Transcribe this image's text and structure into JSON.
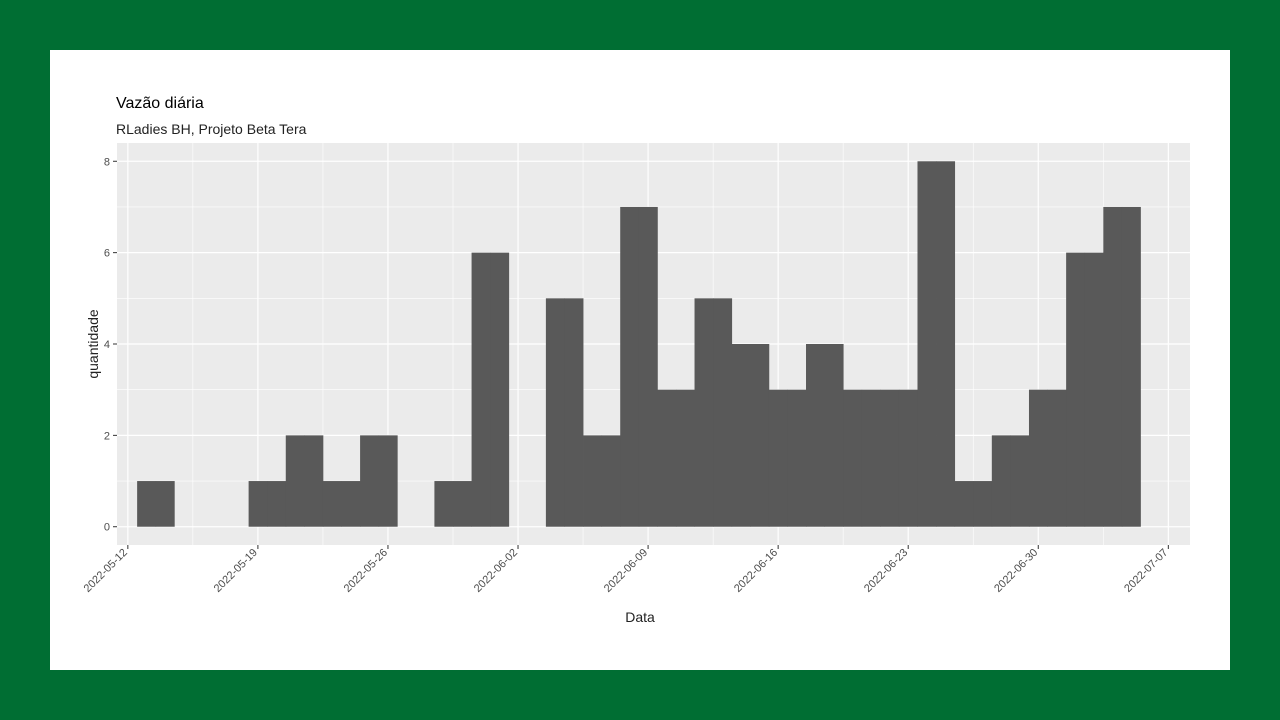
{
  "chart_data": {
    "type": "bar",
    "title": "Vazão diária",
    "subtitle": "RLadies BH, Projeto Beta Tera",
    "xlabel": "Data",
    "ylabel": "quantidade",
    "x": [
      "2022-05-13",
      "2022-05-14",
      "2022-05-15",
      "2022-05-16",
      "2022-05-17",
      "2022-05-18",
      "2022-05-19",
      "2022-05-20",
      "2022-05-21",
      "2022-05-22",
      "2022-05-23",
      "2022-05-24",
      "2022-05-25",
      "2022-05-26",
      "2022-05-27",
      "2022-05-28",
      "2022-05-29",
      "2022-05-30",
      "2022-05-31",
      "2022-06-01",
      "2022-06-02",
      "2022-06-03",
      "2022-06-04",
      "2022-06-05",
      "2022-06-06",
      "2022-06-07",
      "2022-06-08",
      "2022-06-09",
      "2022-06-10",
      "2022-06-11",
      "2022-06-12",
      "2022-06-13",
      "2022-06-14",
      "2022-06-15",
      "2022-06-16",
      "2022-06-17",
      "2022-06-18",
      "2022-06-19",
      "2022-06-20",
      "2022-06-21",
      "2022-06-22",
      "2022-06-23",
      "2022-06-24",
      "2022-06-25",
      "2022-06-26",
      "2022-06-27",
      "2022-06-28",
      "2022-06-29",
      "2022-06-30",
      "2022-07-01",
      "2022-07-02",
      "2022-07-03",
      "2022-07-04",
      "2022-07-05",
      "2022-07-06",
      "2022-07-07"
    ],
    "values": [
      1,
      1,
      0,
      0,
      0,
      0,
      1,
      1,
      2,
      2,
      1,
      1,
      2,
      2,
      0,
      0,
      1,
      1,
      6,
      6,
      0,
      0,
      5,
      5,
      2,
      2,
      7,
      7,
      3,
      3,
      5,
      5,
      4,
      4,
      3,
      3,
      4,
      4,
      3,
      3,
      3,
      3,
      8,
      8,
      1,
      1,
      2,
      2,
      3,
      3,
      6,
      6,
      7,
      7,
      0,
      0
    ],
    "x_ticks": [
      "2022-05-12",
      "2022-05-19",
      "2022-05-26",
      "2022-06-02",
      "2022-06-09",
      "2022-06-16",
      "2022-06-23",
      "2022-06-30",
      "2022-07-07"
    ],
    "y_ticks": [
      0,
      2,
      4,
      6,
      8
    ],
    "ylim": [
      -0.4,
      8.4
    ],
    "xlim": [
      "2022-05-11T10:00",
      "2022-07-08T04:00"
    ],
    "grid": true,
    "colors": {
      "bar": "#595959",
      "panel": "#ebebeb",
      "grid": "#ffffff",
      "frame": "#006e33"
    }
  }
}
